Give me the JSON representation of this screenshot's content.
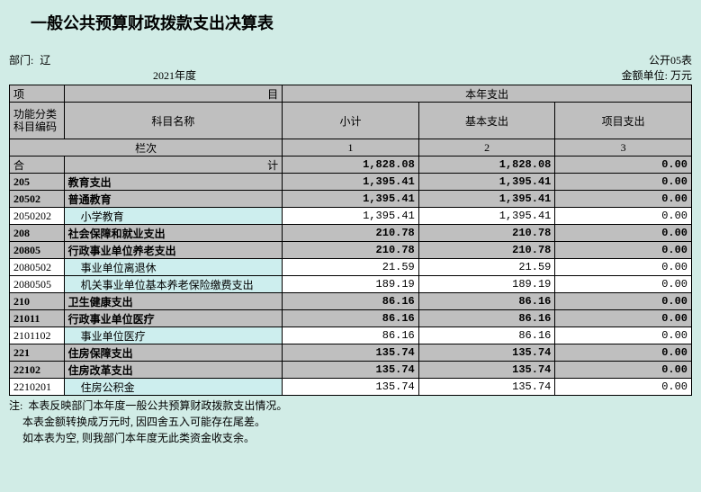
{
  "title": "一般公共预算财政拨款支出决算表",
  "form_no": "公开05表",
  "dept_label": "部门:",
  "dept_value": "辽",
  "period": "2021年度",
  "unit_label": "金额单位: 万元",
  "header": {
    "proj_left": "项",
    "proj_right": "目",
    "this_year": "本年支出",
    "func_code": "功能分类\n科目编码",
    "subject_name": "科目名称",
    "subtotal": "小计",
    "basic_exp": "基本支出",
    "project_exp": "项目支出",
    "col_label": "栏次",
    "c1": "1",
    "c2": "2",
    "c3": "3",
    "total_left": "合",
    "total_right": "计"
  },
  "rows": [
    {
      "type": "total",
      "code": "",
      "name": "",
      "v1": "1,828.08",
      "v2": "1,828.08",
      "v3": "0.00"
    },
    {
      "type": "grey",
      "code": "205",
      "name": "教育支出",
      "bold": true,
      "v1": "1,395.41",
      "v2": "1,395.41",
      "v3": "0.00"
    },
    {
      "type": "grey",
      "code": "20502",
      "name": "普通教育",
      "bold": true,
      "v1": "1,395.41",
      "v2": "1,395.41",
      "v3": "0.00"
    },
    {
      "type": "cyan",
      "code": "2050202",
      "name": "小学教育",
      "indent": 1,
      "v1": "1,395.41",
      "v2": "1,395.41",
      "v3": "0.00"
    },
    {
      "type": "grey",
      "code": "208",
      "name": "社会保障和就业支出",
      "bold": true,
      "v1": "210.78",
      "v2": "210.78",
      "v3": "0.00"
    },
    {
      "type": "grey",
      "code": "20805",
      "name": "行政事业单位养老支出",
      "bold": true,
      "v1": "210.78",
      "v2": "210.78",
      "v3": "0.00"
    },
    {
      "type": "cyan",
      "code": "2080502",
      "name": "事业单位离退休",
      "indent": 1,
      "v1": "21.59",
      "v2": "21.59",
      "v3": "0.00"
    },
    {
      "type": "cyan",
      "code": "2080505",
      "name": "机关事业单位基本养老保险缴费支出",
      "indent": 1,
      "v1": "189.19",
      "v2": "189.19",
      "v3": "0.00"
    },
    {
      "type": "grey",
      "code": "210",
      "name": "卫生健康支出",
      "bold": true,
      "v1": "86.16",
      "v2": "86.16",
      "v3": "0.00"
    },
    {
      "type": "grey",
      "code": "21011",
      "name": "行政事业单位医疗",
      "bold": true,
      "v1": "86.16",
      "v2": "86.16",
      "v3": "0.00"
    },
    {
      "type": "cyan",
      "code": "2101102",
      "name": "事业单位医疗",
      "indent": 1,
      "v1": "86.16",
      "v2": "86.16",
      "v3": "0.00"
    },
    {
      "type": "grey",
      "code": "221",
      "name": "住房保障支出",
      "bold": true,
      "v1": "135.74",
      "v2": "135.74",
      "v3": "0.00"
    },
    {
      "type": "grey",
      "code": "22102",
      "name": "住房改革支出",
      "bold": true,
      "v1": "135.74",
      "v2": "135.74",
      "v3": "0.00"
    },
    {
      "type": "cyan",
      "code": "2210201",
      "name": "住房公积金",
      "indent": 1,
      "v1": "135.74",
      "v2": "135.74",
      "v3": "0.00"
    }
  ],
  "notes": [
    "注:  本表反映部门本年度一般公共预算财政拨款支出情况。",
    "     本表金额转换成万元时, 因四舍五入可能存在尾差。",
    "     如本表为空, 则我部门本年度无此类资金收支余。"
  ]
}
